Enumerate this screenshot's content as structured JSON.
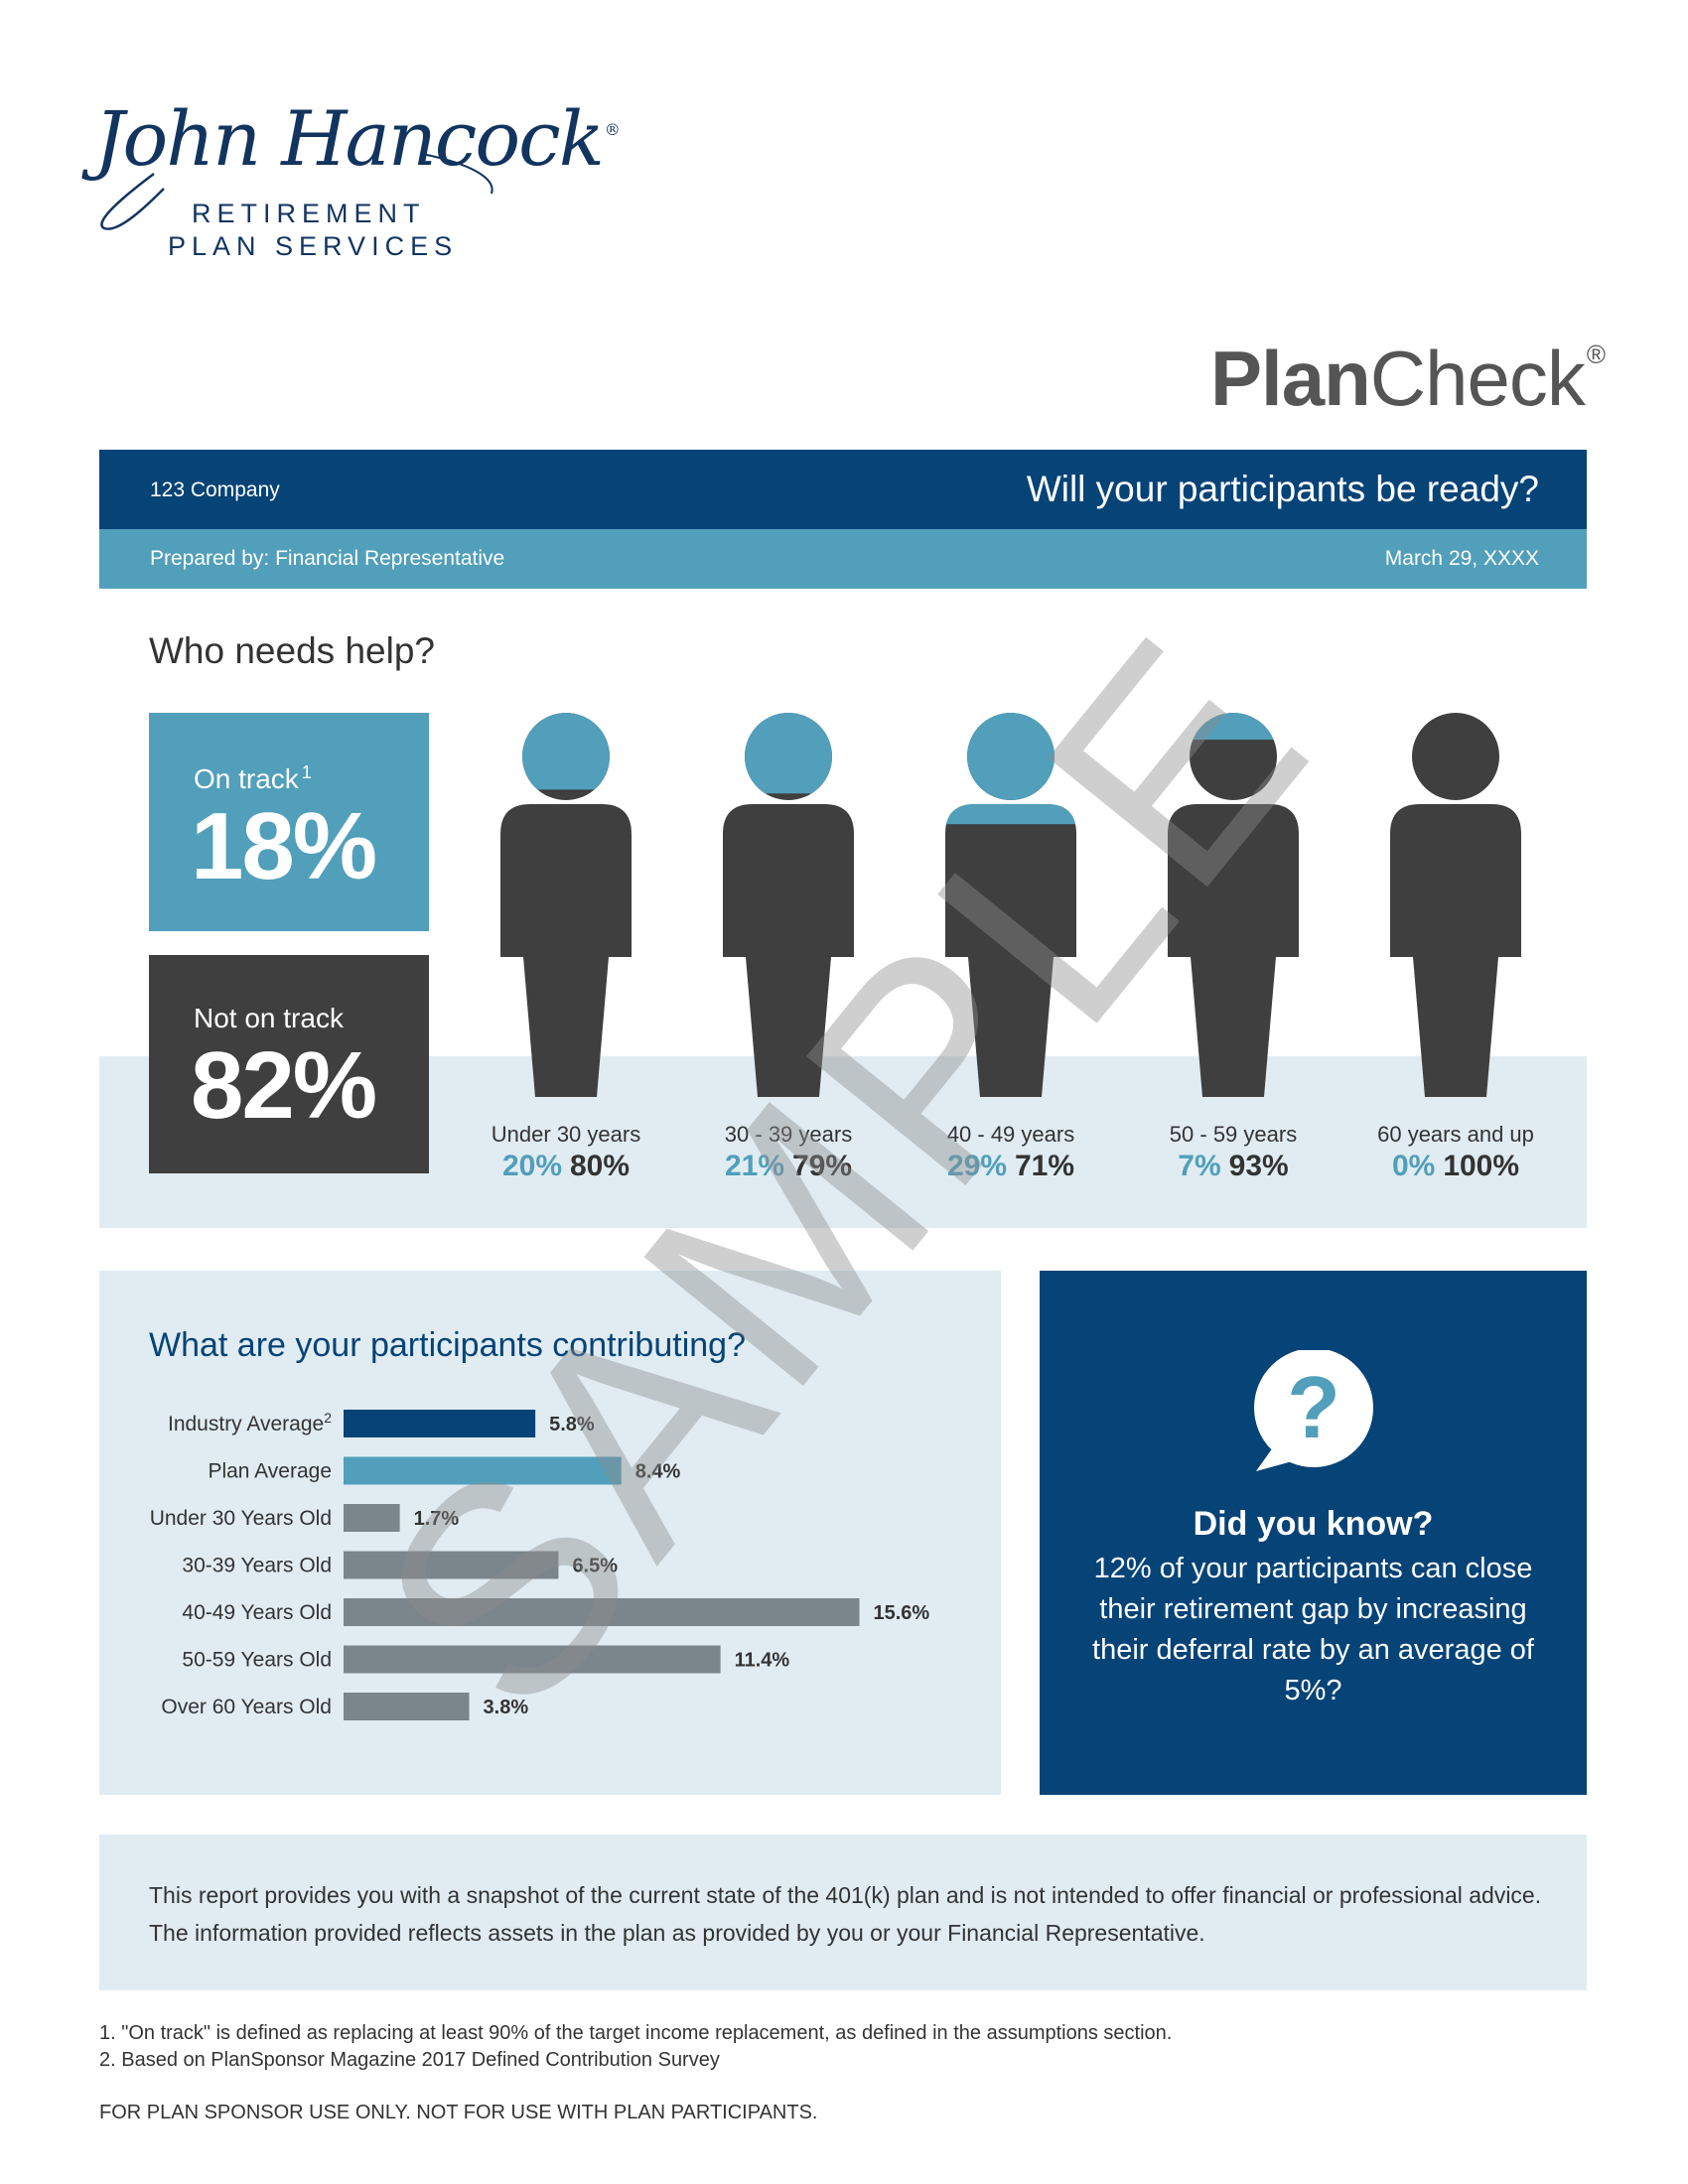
{
  "logo": {
    "script_text": "John Hancock",
    "reg_mark": "®",
    "line1": "RETIREMENT",
    "line2": "PLAN SERVICES"
  },
  "product": {
    "name_bold": "Plan",
    "name_regular": "Check",
    "reg_mark": "®"
  },
  "header": {
    "company": "123 Company",
    "question": "Will your participants be ready?",
    "prepared_by": "Prepared by: Financial Representative",
    "date": "March 29, XXXX"
  },
  "who_needs_help": {
    "heading": "Who needs help?",
    "on_track": {
      "label": "On track",
      "footnote": "1",
      "value": "18%"
    },
    "not_on_track": {
      "label": "Not on track",
      "value": "82%"
    },
    "age_groups": [
      {
        "label": "Under 30 years",
        "on_track": "20%",
        "not_on_track": "80%",
        "fill_fraction": 0.2
      },
      {
        "label": "30 - 39 years",
        "on_track": "21%",
        "not_on_track": "79%",
        "fill_fraction": 0.21
      },
      {
        "label": "40 - 49 years",
        "on_track": "29%",
        "not_on_track": "71%",
        "fill_fraction": 0.29
      },
      {
        "label": "50 - 59 years",
        "on_track": "7%",
        "not_on_track": "93%",
        "fill_fraction": 0.07
      },
      {
        "label": "60 years and up",
        "on_track": "0%",
        "not_on_track": "100%",
        "fill_fraction": 0.0
      }
    ]
  },
  "contributions": {
    "heading": "What are your participants contributing?"
  },
  "chart_data": {
    "type": "bar",
    "orientation": "horizontal",
    "categories": [
      "Industry Average",
      "Plan Average",
      "Under 30 Years Old",
      "30-39 Years Old",
      "40-49 Years Old",
      "50-59 Years Old",
      "Over 60 Years Old"
    ],
    "category_footnotes": [
      "2",
      "",
      "",
      "",
      "",
      "",
      ""
    ],
    "values": [
      5.8,
      8.4,
      1.7,
      6.5,
      15.6,
      11.4,
      3.8
    ],
    "value_labels": [
      "5.8%",
      "8.4%",
      "1.7%",
      "6.5%",
      "15.6%",
      "11.4%",
      "3.8%"
    ],
    "bar_colors": [
      "#064377",
      "#519fba",
      "#7b858c",
      "#7b858c",
      "#7b858c",
      "#7b858c",
      "#7b858c"
    ],
    "xlim": [
      0,
      16
    ]
  },
  "did_you_know": {
    "icon": "question-bubble-icon",
    "title": "Did you know?",
    "body": "12% of your participants can close their retirement gap by increasing their deferral rate by an average of 5%?"
  },
  "disclaimer": "This report provides you with a snapshot of the current state of the 401(k) plan and is not intended to offer financial or professional advice. The information provided reflects assets in the plan as provided by you or your Financial Representative.",
  "footnotes": [
    "1. \"On track\" is defined as replacing at least 90% of the target income replacement, as defined in the assumptions section.",
    "2. Based on PlanSponsor Magazine 2017 Defined Contribution Survey"
  ],
  "sponsor_note": "FOR PLAN SPONSOR USE ONLY. NOT FOR USE WITH PLAN PARTICIPANTS.",
  "watermark": "SAMPLE",
  "colors": {
    "navy": "#064377",
    "teal": "#519fba",
    "dark_gray": "#3f3f3f",
    "light_blue_bg": "#e0ecf2",
    "bar_gray": "#7b858c"
  }
}
